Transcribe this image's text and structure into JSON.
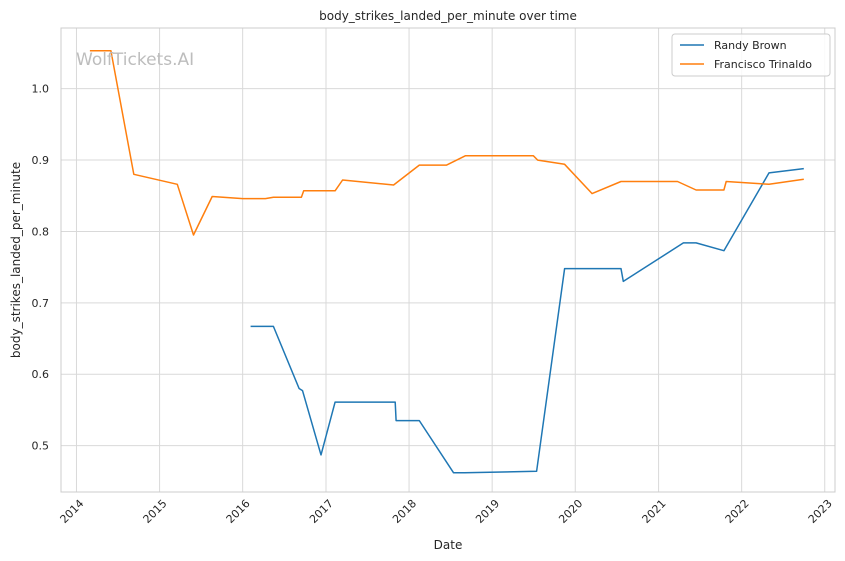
{
  "chart_data": {
    "type": "line",
    "title": "body_strikes_landed_per_minute over time",
    "xlabel": "Date",
    "ylabel": "body_strikes_landed_per_minute",
    "watermark": "WolfTickets.AI",
    "xlim": [
      "2013-10-25",
      "2023-02-15"
    ],
    "ylim": [
      0.435,
      1.085
    ],
    "x_ticks": [
      "2014",
      "2015",
      "2016",
      "2017",
      "2018",
      "2019",
      "2020",
      "2021",
      "2022",
      "2023"
    ],
    "y_ticks": [
      0.5,
      0.6,
      0.7,
      0.8,
      0.9,
      1.0
    ],
    "y_tick_labels": [
      "0.5",
      "0.6",
      "0.7",
      "0.8",
      "0.9",
      "1.0"
    ],
    "grid": true,
    "legend": "top-right",
    "series": [
      {
        "name": "Randy Brown",
        "color": "#1f77b4",
        "points": [
          [
            "2016-02-05",
            0.667
          ],
          [
            "2016-05-15",
            0.667
          ],
          [
            "2016-09-05",
            0.58
          ],
          [
            "2016-09-20",
            0.577
          ],
          [
            "2016-12-10",
            0.487
          ],
          [
            "2017-02-10",
            0.561
          ],
          [
            "2017-11-01",
            0.561
          ],
          [
            "2017-11-05",
            0.535
          ],
          [
            "2018-02-15",
            0.535
          ],
          [
            "2018-07-15",
            0.462
          ],
          [
            "2018-09-01",
            0.462
          ],
          [
            "2019-07-15",
            0.464
          ],
          [
            "2019-11-15",
            0.748
          ],
          [
            "2020-07-20",
            0.748
          ],
          [
            "2020-07-30",
            0.73
          ],
          [
            "2021-04-20",
            0.784
          ],
          [
            "2021-06-15",
            0.784
          ],
          [
            "2021-10-15",
            0.773
          ],
          [
            "2022-05-01",
            0.882
          ],
          [
            "2022-10-01",
            0.888
          ]
        ]
      },
      {
        "name": "Francisco Trinaldo",
        "color": "#ff7f0e",
        "points": [
          [
            "2014-03-01",
            1.053
          ],
          [
            "2014-06-01",
            1.053
          ],
          [
            "2014-09-10",
            0.88
          ],
          [
            "2015-03-20",
            0.866
          ],
          [
            "2015-05-30",
            0.795
          ],
          [
            "2015-08-20",
            0.849
          ],
          [
            "2016-01-01",
            0.846
          ],
          [
            "2016-04-10",
            0.846
          ],
          [
            "2016-05-15",
            0.848
          ],
          [
            "2016-09-15",
            0.848
          ],
          [
            "2016-09-25",
            0.857
          ],
          [
            "2017-02-10",
            0.857
          ],
          [
            "2017-03-15",
            0.872
          ],
          [
            "2017-10-25",
            0.865
          ],
          [
            "2018-02-15",
            0.893
          ],
          [
            "2018-06-15",
            0.893
          ],
          [
            "2018-09-05",
            0.906
          ],
          [
            "2019-07-01",
            0.906
          ],
          [
            "2019-07-20",
            0.9
          ],
          [
            "2019-11-15",
            0.894
          ],
          [
            "2020-03-15",
            0.853
          ],
          [
            "2020-07-20",
            0.87
          ],
          [
            "2021-03-25",
            0.87
          ],
          [
            "2021-06-15",
            0.858
          ],
          [
            "2021-10-15",
            0.858
          ],
          [
            "2021-10-25",
            0.87
          ],
          [
            "2022-05-01",
            0.866
          ],
          [
            "2022-10-01",
            0.873
          ]
        ]
      }
    ]
  }
}
